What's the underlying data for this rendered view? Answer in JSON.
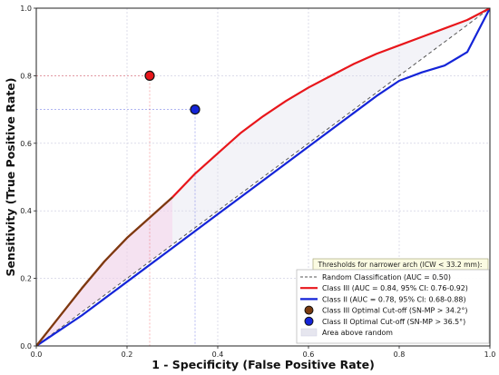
{
  "chart_data": {
    "type": "line",
    "title": "",
    "xlabel": "1 - Specificity (False Positive Rate)",
    "ylabel": "Sensitivity (True Positive Rate)",
    "xlim": [
      0,
      1
    ],
    "ylim": [
      0,
      1
    ],
    "xticks": [
      "0.0",
      "0.2",
      "0.4",
      "0.6",
      "0.8",
      "1.0"
    ],
    "yticks": [
      "0.0",
      "0.2",
      "0.4",
      "0.6",
      "0.8",
      "1.0"
    ],
    "grid": true,
    "legend_position": "lower-right",
    "legend_title": "Thresholds for narrower arch (ICW < 33.2 mm):",
    "series": [
      {
        "name": "Random Classification (AUC = 0.50)",
        "style": "dashed",
        "color": "#555555",
        "x": [
          0,
          1
        ],
        "y": [
          0,
          1
        ]
      },
      {
        "name": "Class III (AUC = 0.84, 95% CI: 0.76-0.92)",
        "style": "solid",
        "color": "#e8161b",
        "x": [
          0,
          0.05,
          0.1,
          0.15,
          0.2,
          0.25,
          0.3,
          0.35,
          0.4,
          0.45,
          0.5,
          0.55,
          0.6,
          0.65,
          0.7,
          0.75,
          0.8,
          0.85,
          0.9,
          0.95,
          1.0
        ],
        "y": [
          0,
          0.085,
          0.17,
          0.25,
          0.32,
          0.38,
          0.44,
          0.51,
          0.57,
          0.63,
          0.68,
          0.725,
          0.765,
          0.8,
          0.835,
          0.865,
          0.89,
          0.915,
          0.94,
          0.965,
          1.0
        ]
      },
      {
        "name": "Class II (AUC = 0.78, 95% CI: 0.68-0.88)",
        "style": "solid",
        "color": "#1424d8",
        "x": [
          0,
          0.1,
          0.2,
          0.3,
          0.4,
          0.5,
          0.6,
          0.7,
          0.75,
          0.8,
          0.85,
          0.9,
          0.95,
          1.0
        ],
        "y": [
          0,
          0.09,
          0.19,
          0.29,
          0.39,
          0.49,
          0.59,
          0.69,
          0.74,
          0.785,
          0.81,
          0.83,
          0.87,
          1.0
        ]
      }
    ],
    "points": [
      {
        "name": "Class III Optimal Cut-off (SN-MP > 34.2°)",
        "x": 0.25,
        "y": 0.8,
        "color": "#e8161b",
        "legend_color": "#7a3b10"
      },
      {
        "name": "Class II Optimal Cut-off (SN-MP > 36.5°)",
        "x": 0.35,
        "y": 0.7,
        "color": "#1424d8",
        "legend_color": "#1424d8"
      }
    ],
    "area_label": "Area above random",
    "lower_segment_color": "#7a3b10",
    "lower_segment_end_x": 0.3
  }
}
